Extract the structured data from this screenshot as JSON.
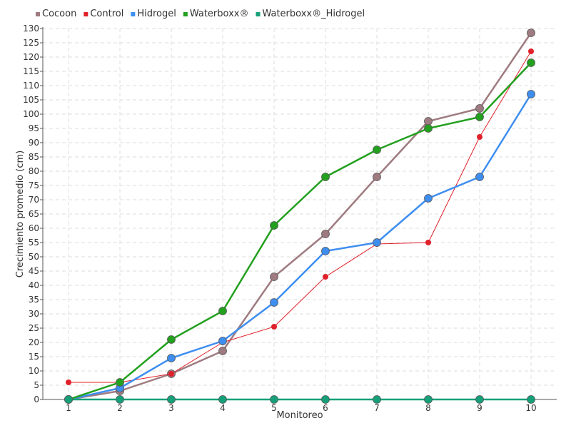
{
  "chart_data": {
    "type": "line",
    "title": "",
    "xlabel": "Monitoreo",
    "ylabel": "Crecimiento promedio (cm)",
    "categories": [
      "1",
      "2",
      "3",
      "4",
      "5",
      "6",
      "7",
      "8",
      "9",
      "10"
    ],
    "ylim": [
      0,
      130
    ],
    "yticks": [
      "0",
      "5",
      "10",
      "15",
      "20",
      "25",
      "30",
      "35",
      "40",
      "45",
      "50",
      "55",
      "60",
      "65",
      "70",
      "75",
      "80",
      "85",
      "90",
      "95",
      "100",
      "105",
      "110",
      "115",
      "120",
      "125",
      "130"
    ],
    "grid": true,
    "legend_position": "top-left",
    "series": [
      {
        "name": "Cocoon",
        "color": "#9e7b80",
        "values": [
          0,
          3,
          9,
          17,
          43,
          58,
          78,
          97.5,
          102,
          128.5
        ]
      },
      {
        "name": "Control",
        "color": "#e0202a",
        "values": [
          6,
          6,
          9,
          20,
          25.5,
          43,
          54.5,
          55,
          92,
          122
        ]
      },
      {
        "name": "Hidrogel",
        "color": "#3e8ef0",
        "values": [
          0,
          4,
          14.5,
          20.5,
          34,
          52,
          55,
          70.5,
          78,
          107
        ]
      },
      {
        "name": "Waterboxx®",
        "color": "#22a01e",
        "values": [
          0,
          6,
          21,
          31,
          61,
          78,
          87.5,
          95,
          99,
          118
        ]
      },
      {
        "name": "Waterboxx®_Hidrogel",
        "color": "#15a07a",
        "values": [
          0,
          0,
          0,
          0,
          0,
          0,
          0,
          0,
          0,
          0
        ]
      }
    ]
  }
}
